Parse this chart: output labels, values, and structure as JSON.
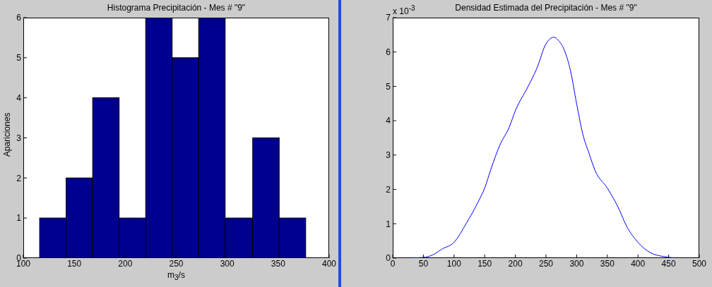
{
  "chart_data": [
    {
      "type": "histogram",
      "title": "Histograma Precipitación - Mes # \"9\"",
      "xlabel": "m$_{3}$/s",
      "ylabel": "Apariciones",
      "bins": [
        116,
        142,
        168,
        194,
        220,
        246,
        272,
        298,
        325,
        351,
        377
      ],
      "values": [
        1,
        2,
        4,
        1,
        6,
        5,
        6,
        1,
        3,
        1
      ],
      "color": "#00008f",
      "xlim": [
        100,
        400
      ],
      "xticks": [
        100,
        150,
        200,
        250,
        300,
        350,
        400
      ],
      "ylim": [
        0,
        6
      ],
      "yticks": [
        0,
        1,
        2,
        3,
        4,
        5,
        6
      ]
    },
    {
      "type": "line",
      "title": "Densidad Estimada del Precipitación - Mes # \"9\"",
      "annotations": [
        "x 10$^{-3}$"
      ],
      "x": [
        33,
        50,
        65,
        80,
        100,
        120,
        140,
        150,
        160,
        175,
        190,
        200,
        220,
        235,
        250,
        263,
        270,
        280,
        290,
        300,
        310,
        320,
        330,
        350,
        370,
        380,
        400,
        420,
        440,
        458
      ],
      "values": [
        0.01,
        0.02,
        0.09,
        0.26,
        0.46,
        1.01,
        1.66,
        2.04,
        2.58,
        3.3,
        3.81,
        4.29,
        4.97,
        5.52,
        6.24,
        6.43,
        6.34,
        6.05,
        5.45,
        4.49,
        3.61,
        3.06,
        2.55,
        2.04,
        1.39,
        0.98,
        0.46,
        0.16,
        0.05,
        0.01
      ],
      "color": "#0000ff",
      "xlim": [
        0,
        500
      ],
      "xticks": [
        0,
        50,
        100,
        150,
        200,
        250,
        300,
        350,
        400,
        450,
        500
      ],
      "ylim": [
        0,
        7
      ],
      "yticks": [
        0,
        1,
        2,
        3,
        4,
        5,
        6,
        7
      ]
    }
  ]
}
